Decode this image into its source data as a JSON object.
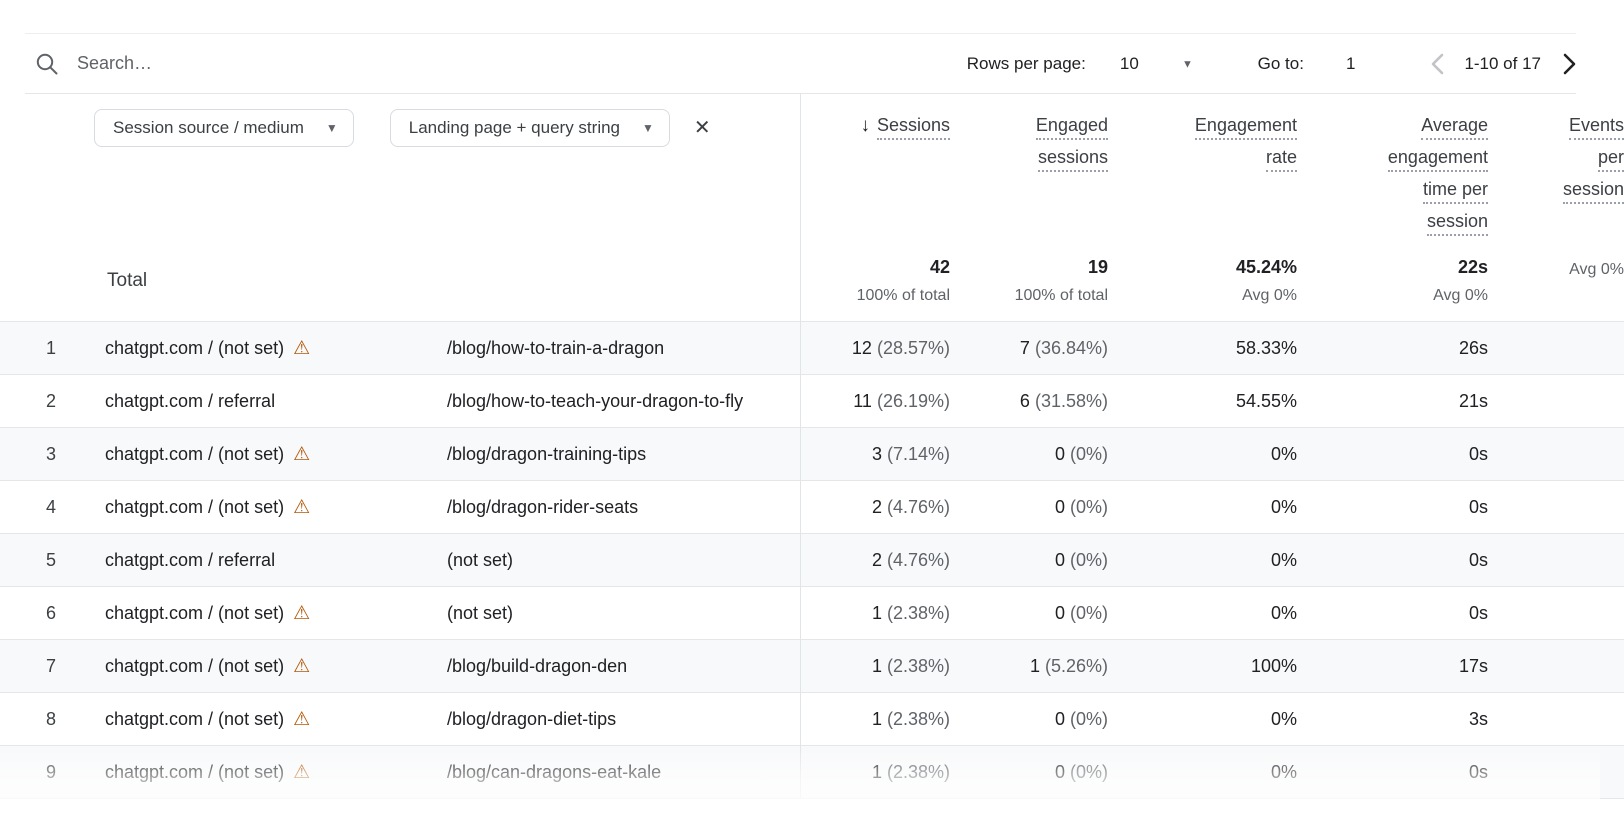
{
  "toolbar": {
    "search_placeholder": "Search…",
    "rows_per_page_label": "Rows per page:",
    "rows_per_page_value": "10",
    "go_to_label": "Go to:",
    "go_to_value": "1",
    "range_text": "1-10 of 17"
  },
  "filters": {
    "primary_dimension": "Session source / medium",
    "secondary_dimension": "Landing page + query string"
  },
  "glyphs": {
    "sort_desc": "↓",
    "caret": "▼",
    "close": "✕",
    "warning": "⚠"
  },
  "colors": {
    "warning": "#b3590a",
    "row_band": "#f8f9fa",
    "gridline": "#e4e6e9"
  },
  "columns": [
    {
      "id": "sessions",
      "lines": [
        "Sessions"
      ],
      "sorted": "desc"
    },
    {
      "id": "engaged-sessions",
      "lines": [
        "Engaged",
        "sessions"
      ]
    },
    {
      "id": "engagement-rate",
      "lines": [
        "Engagement",
        "rate"
      ]
    },
    {
      "id": "avg-engagement-time",
      "lines": [
        "Average",
        "engagement",
        "time per",
        "session"
      ]
    },
    {
      "id": "events-per-session",
      "lines": [
        "Events",
        "per",
        "session"
      ]
    }
  ],
  "totals": {
    "label": "Total",
    "sessions": "42",
    "sessions_sub": "100% of total",
    "engaged": "19",
    "engaged_sub": "100% of total",
    "rate": "45.24%",
    "rate_sub": "Avg 0%",
    "time": "22s",
    "time_sub": "Avg 0%",
    "events": "",
    "events_sub": "Avg 0%"
  },
  "rows": [
    {
      "num": "1",
      "source": "chatgpt.com / (not set)",
      "warning": true,
      "landing": "/blog/how-to-train-a-dragon",
      "sessions": "12",
      "sessions_share": "(28.57%)",
      "engaged": "7",
      "engaged_share": "(36.84%)",
      "rate": "58.33%",
      "time": "26s"
    },
    {
      "num": "2",
      "source": "chatgpt.com / referral",
      "warning": false,
      "landing": "/blog/how-to-teach-your-dragon-to-fly",
      "sessions": "11",
      "sessions_share": "(26.19%)",
      "engaged": "6",
      "engaged_share": "(31.58%)",
      "rate": "54.55%",
      "time": "21s"
    },
    {
      "num": "3",
      "source": "chatgpt.com / (not set)",
      "warning": true,
      "landing": "/blog/dragon-training-tips",
      "sessions": "3",
      "sessions_share": "(7.14%)",
      "engaged": "0",
      "engaged_share": "(0%)",
      "rate": "0%",
      "time": "0s"
    },
    {
      "num": "4",
      "source": "chatgpt.com / (not set)",
      "warning": true,
      "landing": "/blog/dragon-rider-seats",
      "sessions": "2",
      "sessions_share": "(4.76%)",
      "engaged": "0",
      "engaged_share": "(0%)",
      "rate": "0%",
      "time": "0s"
    },
    {
      "num": "5",
      "source": "chatgpt.com / referral",
      "warning": false,
      "landing": "(not set)",
      "sessions": "2",
      "sessions_share": "(4.76%)",
      "engaged": "0",
      "engaged_share": "(0%)",
      "rate": "0%",
      "time": "0s"
    },
    {
      "num": "6",
      "source": "chatgpt.com / (not set)",
      "warning": true,
      "landing": "(not set)",
      "sessions": "1",
      "sessions_share": "(2.38%)",
      "engaged": "0",
      "engaged_share": "(0%)",
      "rate": "0%",
      "time": "0s"
    },
    {
      "num": "7",
      "source": "chatgpt.com / (not set)",
      "warning": true,
      "landing": "/blog/build-dragon-den",
      "sessions": "1",
      "sessions_share": "(2.38%)",
      "engaged": "1",
      "engaged_share": "(5.26%)",
      "rate": "100%",
      "time": "17s"
    },
    {
      "num": "8",
      "source": "chatgpt.com / (not set)",
      "warning": true,
      "landing": "/blog/dragon-diet-tips",
      "sessions": "1",
      "sessions_share": "(2.38%)",
      "engaged": "0",
      "engaged_share": "(0%)",
      "rate": "0%",
      "time": "3s"
    },
    {
      "num": "9",
      "source": "chatgpt.com / (not set)",
      "warning": true,
      "landing": "/blog/can-dragons-eat-kale",
      "sessions": "1",
      "sessions_share": "(2.38%)",
      "engaged": "0",
      "engaged_share": "(0%)",
      "rate": "0%",
      "time": "0s"
    }
  ]
}
